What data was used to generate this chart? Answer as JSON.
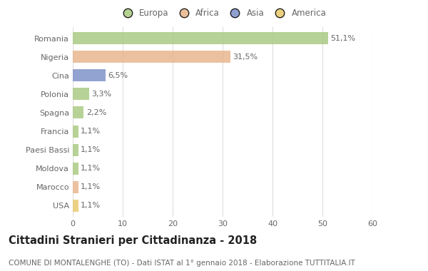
{
  "countries": [
    "Romania",
    "Nigeria",
    "Cina",
    "Polonia",
    "Spagna",
    "Francia",
    "Paesi Bassi",
    "Moldova",
    "Marocco",
    "USA"
  ],
  "values": [
    51.1,
    31.5,
    6.5,
    3.3,
    2.2,
    1.1,
    1.1,
    1.1,
    1.1,
    1.1
  ],
  "labels": [
    "51,1%",
    "31,5%",
    "6,5%",
    "3,3%",
    "2,2%",
    "1,1%",
    "1,1%",
    "1,1%",
    "1,1%",
    "1,1%"
  ],
  "colors": [
    "#a8c97f",
    "#e8b48a",
    "#7b8fc7",
    "#a8c97f",
    "#a8c97f",
    "#a8c97f",
    "#a8c97f",
    "#a8c97f",
    "#e8b48a",
    "#e8c86a"
  ],
  "legend_labels": [
    "Europa",
    "Africa",
    "Asia",
    "America"
  ],
  "legend_colors": [
    "#a8c97f",
    "#e8b48a",
    "#7b8fc7",
    "#e8c86a"
  ],
  "title": "Cittadini Stranieri per Cittadinanza - 2018",
  "subtitle": "COMUNE DI MONTALENGHE (TO) - Dati ISTAT al 1° gennaio 2018 - Elaborazione TUTTITALIA.IT",
  "xlim": [
    0,
    60
  ],
  "xticks": [
    0,
    10,
    20,
    30,
    40,
    50,
    60
  ],
  "background_color": "#ffffff",
  "grid_color": "#dddddd",
  "bar_height": 0.65,
  "title_fontsize": 10.5,
  "subtitle_fontsize": 7.5,
  "label_fontsize": 8,
  "tick_fontsize": 8,
  "legend_fontsize": 8.5
}
